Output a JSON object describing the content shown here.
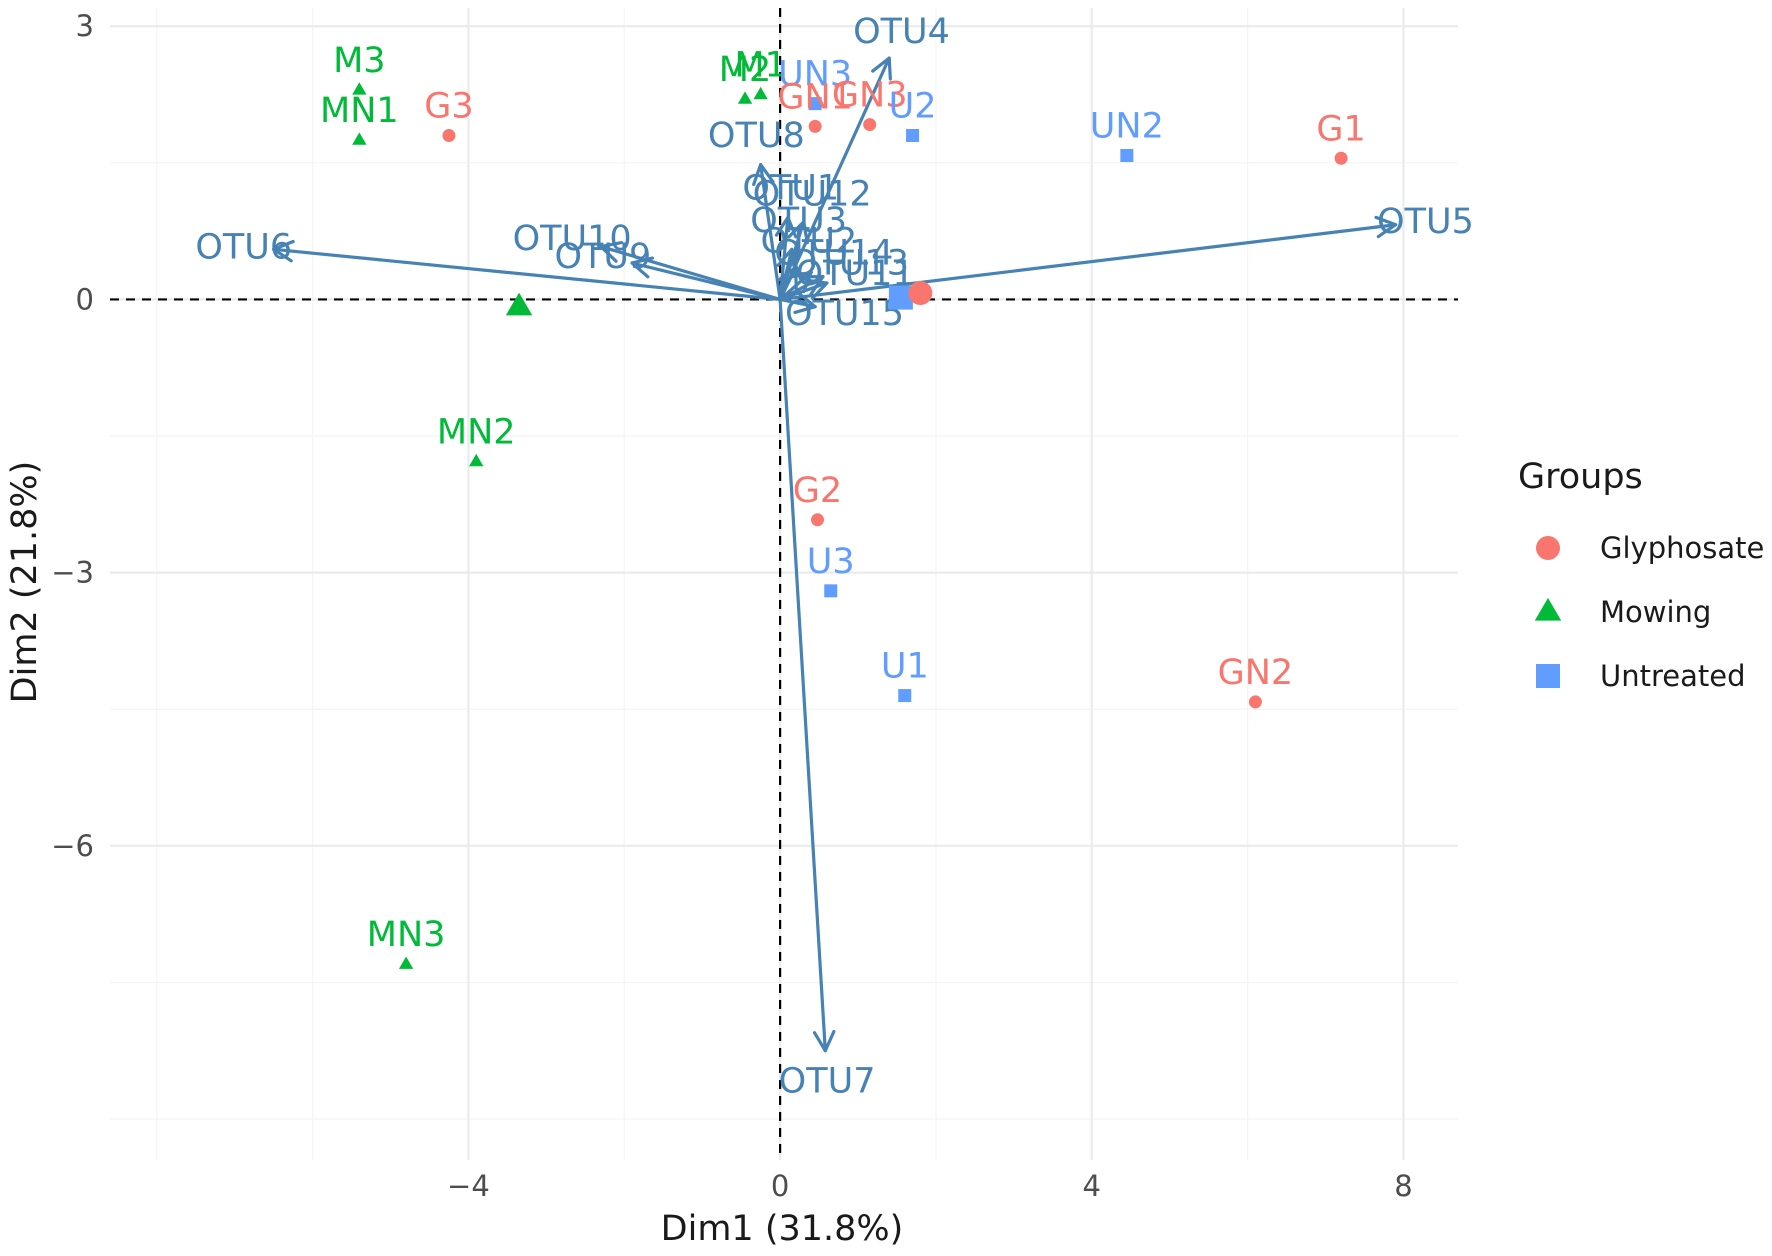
{
  "chart_data": {
    "type": "scatter",
    "subtype": "pca-biplot",
    "title": "",
    "xlabel": "Dim1 (31.8%)",
    "ylabel": "Dim2 (21.8%)",
    "xlim": [
      -8.6,
      8.7
    ],
    "ylim": [
      -9.45,
      3.2
    ],
    "x_ticks": [
      -4,
      0,
      4,
      8
    ],
    "y_ticks": [
      3,
      0,
      -3,
      -6
    ],
    "x_tick_labels": [
      "−4",
      "0",
      "4",
      "8"
    ],
    "y_tick_labels": [
      "3",
      "0",
      "−3",
      "−6"
    ],
    "grid": true,
    "zero_lines": true,
    "legend": {
      "title": "Groups",
      "position": "right",
      "entries": [
        "Glyphosate",
        "Mowing",
        "Untreated"
      ]
    },
    "groups": [
      {
        "name": "Glyphosate",
        "color": "#F8766D",
        "shape": "circle"
      },
      {
        "name": "Mowing",
        "color": "#00BA38",
        "shape": "triangle"
      },
      {
        "name": "Untreated",
        "color": "#619CFF",
        "shape": "square"
      }
    ],
    "points": [
      {
        "label": "M3",
        "group": "Mowing",
        "x": -5.4,
        "y": 2.3
      },
      {
        "label": "MN1",
        "group": "Mowing",
        "x": -5.4,
        "y": 1.75
      },
      {
        "label": "G3",
        "group": "Glyphosate",
        "x": -4.25,
        "y": 1.8
      },
      {
        "label": "M2",
        "group": "Mowing",
        "x": -0.45,
        "y": 2.2
      },
      {
        "label": "M1",
        "group": "Mowing",
        "x": -0.25,
        "y": 2.25
      },
      {
        "label": "UN3",
        "group": "Untreated",
        "x": 0.45,
        "y": 2.15
      },
      {
        "label": "GN1",
        "group": "Glyphosate",
        "x": 0.45,
        "y": 1.9
      },
      {
        "label": "GN3",
        "group": "Glyphosate",
        "x": 1.15,
        "y": 1.92
      },
      {
        "label": "U2",
        "group": "Untreated",
        "x": 1.7,
        "y": 1.8
      },
      {
        "label": "UN2",
        "group": "Untreated",
        "x": 4.45,
        "y": 1.58
      },
      {
        "label": "G1",
        "group": "Glyphosate",
        "x": 7.2,
        "y": 1.55
      },
      {
        "label": "MN2",
        "group": "Mowing",
        "x": -3.9,
        "y": -1.78
      },
      {
        "label": "G2",
        "group": "Glyphosate",
        "x": 0.48,
        "y": -2.42
      },
      {
        "label": "U3",
        "group": "Untreated",
        "x": 0.65,
        "y": -3.2
      },
      {
        "label": "U1",
        "group": "Untreated",
        "x": 1.6,
        "y": -4.35
      },
      {
        "label": "GN2",
        "group": "Glyphosate",
        "x": 6.1,
        "y": -4.42
      },
      {
        "label": "MN3",
        "group": "Mowing",
        "x": -4.8,
        "y": -7.3
      }
    ],
    "centroids": [
      {
        "group": "Mowing",
        "x": -3.35,
        "y": -0.08
      },
      {
        "group": "Untreated",
        "x": 1.55,
        "y": 0.02
      },
      {
        "group": "Glyphosate",
        "x": 1.8,
        "y": 0.07
      }
    ],
    "variables": [
      {
        "name": "OTU4",
        "x": 1.4,
        "y": 2.65
      },
      {
        "name": "OTU5",
        "x": 7.9,
        "y": 0.82
      },
      {
        "name": "OTU6",
        "x": -6.5,
        "y": 0.55
      },
      {
        "name": "OTU7",
        "x": 0.58,
        "y": -8.25
      },
      {
        "name": "OTU8",
        "x": -0.25,
        "y": 1.48
      },
      {
        "name": "OTU10",
        "x": -2.3,
        "y": 0.58
      },
      {
        "name": "OTU9",
        "x": -1.9,
        "y": 0.4
      },
      {
        "name": "OTU1",
        "x": 0.1,
        "y": 0.9
      },
      {
        "name": "OTU12",
        "x": 0.3,
        "y": 0.85
      },
      {
        "name": "OTU3",
        "x": 0.15,
        "y": 0.55
      },
      {
        "name": "OTU13",
        "x": 0.55,
        "y": 0.25
      },
      {
        "name": "OTU2",
        "x": 0.2,
        "y": 0.35
      },
      {
        "name": "OTU11",
        "x": 0.6,
        "y": 0.18
      },
      {
        "name": "OTU14",
        "x": 0.4,
        "y": 0.3
      },
      {
        "name": "OTU15",
        "x": 0.45,
        "y": -0.08
      }
    ],
    "variable_color": "#4682B4"
  }
}
